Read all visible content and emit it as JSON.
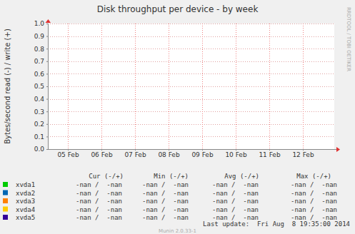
{
  "chart_data": {
    "type": "line",
    "title": "Disk throughput per device - by week",
    "y_label": "Bytes/second read (-) / write (+)",
    "categories": [
      "05 Feb",
      "06 Feb",
      "07 Feb",
      "08 Feb",
      "09 Feb",
      "10 Feb",
      "11 Feb",
      "12 Feb"
    ],
    "series": [
      {
        "name": "xvda1",
        "color": "#00cc00",
        "values": [
          null,
          null,
          null,
          null,
          null,
          null,
          null,
          null
        ]
      },
      {
        "name": "xvda2",
        "color": "#0066b3",
        "values": [
          null,
          null,
          null,
          null,
          null,
          null,
          null,
          null
        ]
      },
      {
        "name": "xvda3",
        "color": "#ff8000",
        "values": [
          null,
          null,
          null,
          null,
          null,
          null,
          null,
          null
        ]
      },
      {
        "name": "xvda4",
        "color": "#ffcc00",
        "values": [
          null,
          null,
          null,
          null,
          null,
          null,
          null,
          null
        ]
      },
      {
        "name": "xvda5",
        "color": "#330099",
        "values": [
          null,
          null,
          null,
          null,
          null,
          null,
          null,
          null
        ]
      }
    ],
    "ylim": [
      0,
      1
    ],
    "yticks": [
      {
        "value": 0,
        "label": "0.0"
      },
      0.1,
      0.2,
      0.3,
      0.4,
      0.5,
      0.6,
      0.7,
      0.8,
      0.9,
      {
        "value": 1,
        "label": "1.0"
      }
    ],
    "grid": true,
    "legend": "bottom",
    "summary": {
      "columns": [
        "Cur (-/+)",
        "Min (-/+)",
        "Avg (-/+)",
        "Max (-/+)"
      ],
      "rows": [
        [
          "-nan /  -nan",
          "-nan /  -nan",
          "-nan /  -nan",
          "-nan /  -nan"
        ],
        [
          "-nan /  -nan",
          "-nan /  -nan",
          "-nan /  -nan",
          "-nan /  -nan"
        ],
        [
          "-nan /  -nan",
          "-nan /  -nan",
          "-nan /  -nan",
          "-nan /  -nan"
        ],
        [
          "-nan /  -nan",
          "-nan /  -nan",
          "-nan /  -nan",
          "-nan /  -nan"
        ],
        [
          "-nan /  -nan",
          "-nan /  -nan",
          "-nan /  -nan",
          "-nan /  -nan"
        ]
      ]
    },
    "side_label": "RRDTOOL / TOBI OETIKER",
    "footer": "Last update:  Fri Aug  8 19:35:00 2014",
    "credit": "Munin 2.0.33-1"
  }
}
